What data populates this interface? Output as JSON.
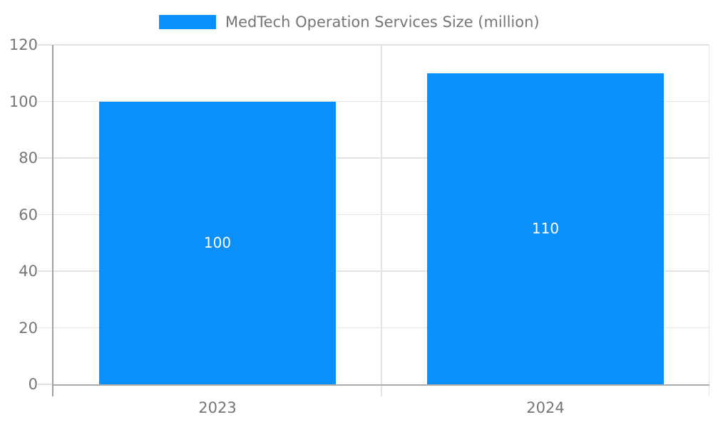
{
  "colors": {
    "bar_fill": "#0a90f8",
    "data_label": "#ffffff",
    "axis_text": "#757575",
    "legend_text": "#757575",
    "gridline": "#e3e3e3",
    "axis_line": "#a0a0a0",
    "baseline": "#ababab",
    "background": "#ffffff"
  },
  "chart_data": {
    "type": "bar",
    "title": "MedTech Operation Services Size (million)",
    "legend": {
      "position": "top",
      "label": "MedTech Operation Services Size (million)"
    },
    "categories": [
      "2023",
      "2024"
    ],
    "values": [
      100,
      110
    ],
    "data_labels": [
      "100",
      "110"
    ],
    "xlabel": "",
    "ylabel": "",
    "ylim": [
      0,
      120
    ],
    "yticks": [
      0,
      20,
      40,
      60,
      80,
      100,
      120
    ],
    "grid": true,
    "background": "#ffffff"
  }
}
